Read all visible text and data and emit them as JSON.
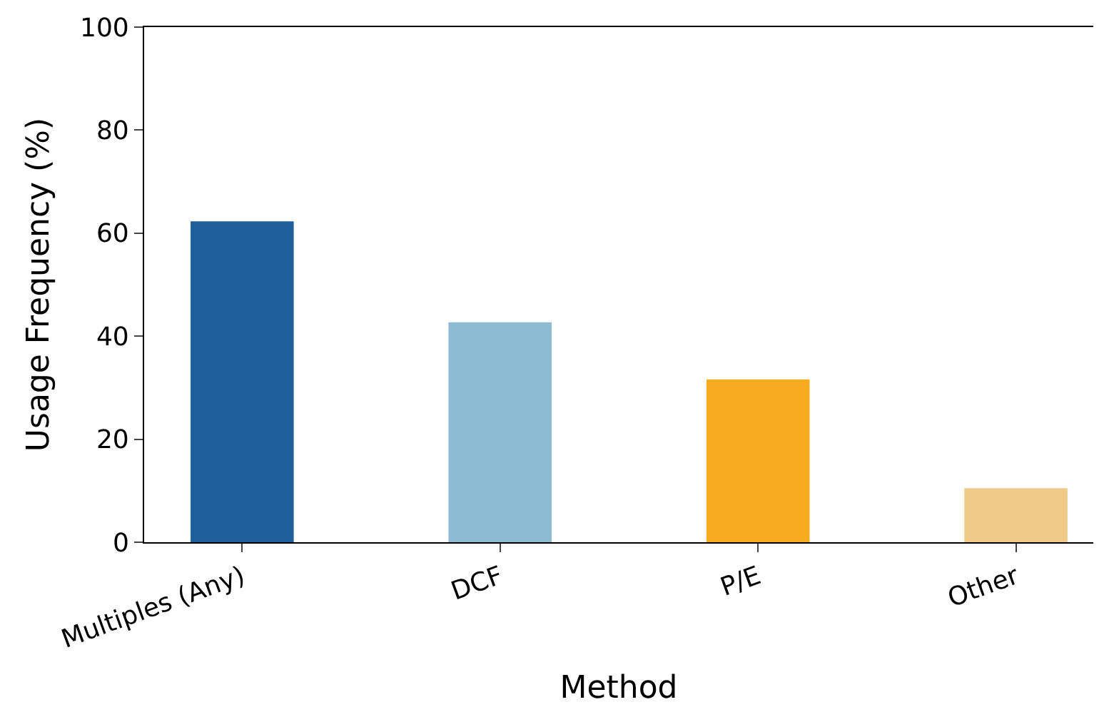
{
  "chart_data": {
    "type": "bar",
    "xlabel": "Method",
    "ylabel": "Usage Frequency (%)",
    "categories": [
      "Multiples (Any)",
      "DCF",
      "P/E",
      "Other"
    ],
    "values": [
      62.3,
      42.7,
      31.6,
      10.5
    ],
    "colors": [
      "#1f5f9c",
      "#8bbcd3",
      "#f6ac1e",
      "#efca88"
    ],
    "ylim": [
      0,
      100
    ],
    "yticks": [
      0,
      20,
      40,
      60,
      80,
      100
    ]
  }
}
